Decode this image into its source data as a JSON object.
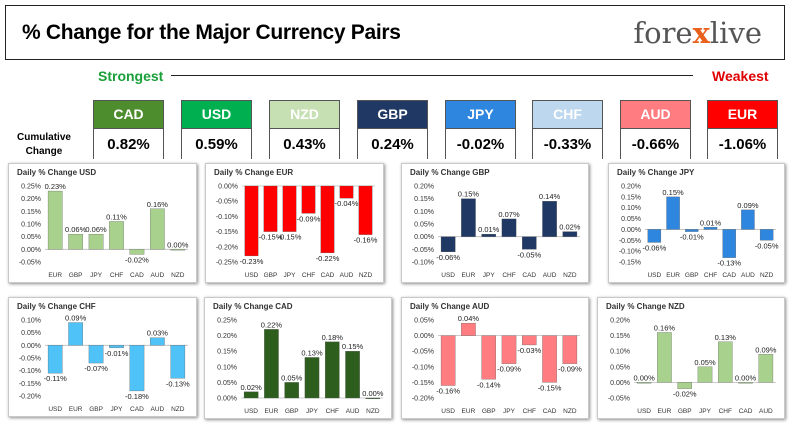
{
  "header": {
    "title": "% Change for the Major Currency Pairs",
    "logo_part1": "fore",
    "logo_x": "x",
    "logo_part2": "live"
  },
  "ranking": {
    "strongest_label": "Strongest",
    "weakest_label": "Weakest",
    "cumulative_label_line1": "Cumulative",
    "cumulative_label_line2": "Change",
    "currencies": [
      {
        "code": "CAD",
        "value": "0.82%",
        "color": "#4e8d2e"
      },
      {
        "code": "USD",
        "value": "0.59%",
        "color": "#00b050"
      },
      {
        "code": "NZD",
        "value": "0.43%",
        "color": "#c6e0b4"
      },
      {
        "code": "GBP",
        "value": "0.24%",
        "color": "#1f3864"
      },
      {
        "code": "JPY",
        "value": "-0.02%",
        "color": "#2e86de"
      },
      {
        "code": "CHF",
        "value": "-0.33%",
        "color": "#bdd7ee"
      },
      {
        "code": "AUD",
        "value": "-0.66%",
        "color": "#ff7c80"
      },
      {
        "code": "EUR",
        "value": "-1.06%",
        "color": "#ff0000"
      }
    ]
  },
  "chart_data": [
    {
      "type": "bar",
      "title": "Daily % Change USD",
      "categories": [
        "EUR",
        "GBP",
        "JPY",
        "CHF",
        "CAD",
        "AUD",
        "NZD"
      ],
      "values": [
        0.23,
        0.06,
        0.06,
        0.11,
        -0.02,
        0.16,
        0.0
      ],
      "labels": [
        "0.23%",
        "0.06%",
        "0.06%",
        "0.11%",
        "-0.02%",
        "0.16%",
        "0.00%"
      ],
      "yticks": [
        "0.25%",
        "0.20%",
        "0.15%",
        "0.10%",
        "0.05%",
        "0.00%",
        "-0.05%"
      ],
      "ylim": [
        -0.05,
        0.25
      ],
      "color": "#a9d18e"
    },
    {
      "type": "bar",
      "title": "Daily % Change EUR",
      "categories": [
        "USD",
        "GBP",
        "JPY",
        "CHF",
        "CAD",
        "AUD",
        "NZD"
      ],
      "values": [
        -0.23,
        -0.15,
        -0.15,
        -0.09,
        -0.22,
        -0.04,
        -0.16
      ],
      "labels": [
        "-0.23%",
        "-0.15%",
        "-0.15%",
        "-0.09%",
        "-0.22%",
        "-0.04%",
        "-0.16%"
      ],
      "yticks": [
        "0.00%",
        "-0.05%",
        "-0.10%",
        "-0.15%",
        "-0.20%",
        "-0.25%"
      ],
      "ylim": [
        -0.25,
        0.0
      ],
      "color": "#ff0000"
    },
    {
      "type": "bar",
      "title": "Daily % Change GBP",
      "categories": [
        "USD",
        "EUR",
        "JPY",
        "CHF",
        "CAD",
        "AUD",
        "NZD"
      ],
      "values": [
        -0.06,
        0.15,
        0.01,
        0.07,
        -0.05,
        0.14,
        0.02
      ],
      "labels": [
        "-0.06%",
        "0.15%",
        "0.01%",
        "0.07%",
        "-0.05%",
        "0.14%",
        "0.02%"
      ],
      "yticks": [
        "0.20%",
        "0.15%",
        "0.10%",
        "0.05%",
        "0.00%",
        "-0.05%",
        "-0.10%"
      ],
      "ylim": [
        -0.1,
        0.2
      ],
      "color": "#1f3864"
    },
    {
      "type": "bar",
      "title": "Daily % Change JPY",
      "categories": [
        "USD",
        "EUR",
        "GBP",
        "CHF",
        "CAD",
        "AUD",
        "NZD"
      ],
      "values": [
        -0.06,
        0.15,
        -0.01,
        0.01,
        -0.13,
        0.09,
        -0.05
      ],
      "labels": [
        "-0.06%",
        "0.15%",
        "-0.01%",
        "0.01%",
        "-0.13%",
        "0.09%",
        "-0.05%"
      ],
      "yticks": [
        "0.20%",
        "0.15%",
        "0.10%",
        "0.05%",
        "0.00%",
        "-0.05%",
        "-0.10%",
        "-0.15%"
      ],
      "ylim": [
        -0.15,
        0.2
      ],
      "color": "#2e86de"
    },
    {
      "type": "bar",
      "title": "Daily % Change CHF",
      "categories": [
        "USD",
        "EUR",
        "GBP",
        "JPY",
        "CAD",
        "AUD",
        "NZD"
      ],
      "values": [
        -0.11,
        0.09,
        -0.07,
        -0.01,
        -0.18,
        0.03,
        -0.13
      ],
      "labels": [
        "-0.11%",
        "0.09%",
        "-0.07%",
        "-0.01%",
        "-0.18%",
        "0.03%",
        "-0.13%"
      ],
      "yticks": [
        "0.10%",
        "0.05%",
        "0.00%",
        "-0.05%",
        "-0.10%",
        "-0.15%",
        "-0.20%"
      ],
      "ylim": [
        -0.2,
        0.1
      ],
      "color": "#4fc3f7"
    },
    {
      "type": "bar",
      "title": "Daily % Change CAD",
      "categories": [
        "USD",
        "EUR",
        "GBP",
        "JPY",
        "CHF",
        "AUD",
        "NZD"
      ],
      "values": [
        0.02,
        0.22,
        0.05,
        0.13,
        0.18,
        0.15,
        0.0
      ],
      "labels": [
        "0.02%",
        "0.22%",
        "0.05%",
        "0.13%",
        "0.18%",
        "0.15%",
        "0.00%"
      ],
      "yticks": [
        "0.25%",
        "0.20%",
        "0.15%",
        "0.10%",
        "0.05%",
        "0.00%"
      ],
      "ylim": [
        0.0,
        0.25
      ],
      "color": "#2e5e1e"
    },
    {
      "type": "bar",
      "title": "Daily % Change AUD",
      "categories": [
        "USD",
        "EUR",
        "GBP",
        "JPY",
        "CHF",
        "CAD",
        "NZD"
      ],
      "values": [
        -0.16,
        0.04,
        -0.14,
        -0.09,
        -0.03,
        -0.15,
        -0.09
      ],
      "labels": [
        "-0.16%",
        "0.04%",
        "-0.14%",
        "-0.09%",
        "-0.03%",
        "-0.15%",
        "-0.09%"
      ],
      "yticks": [
        "0.05%",
        "0.00%",
        "-0.05%",
        "-0.10%",
        "-0.15%",
        "-0.20%"
      ],
      "ylim": [
        -0.2,
        0.05
      ],
      "color": "#ff7c80"
    },
    {
      "type": "bar",
      "title": "Daily % Change NZD",
      "categories": [
        "USD",
        "EUR",
        "GBP",
        "JPY",
        "CHF",
        "CAD",
        "AUD"
      ],
      "values": [
        0.0,
        0.16,
        -0.02,
        0.05,
        0.13,
        0.0,
        0.09
      ],
      "labels": [
        "0.00%",
        "0.16%",
        "-0.02%",
        "0.05%",
        "0.13%",
        "0.00%",
        "0.09%"
      ],
      "yticks": [
        "0.20%",
        "0.15%",
        "0.10%",
        "0.05%",
        "0.00%",
        "-0.05%"
      ],
      "ylim": [
        -0.05,
        0.2
      ],
      "color": "#a9d18e"
    }
  ]
}
